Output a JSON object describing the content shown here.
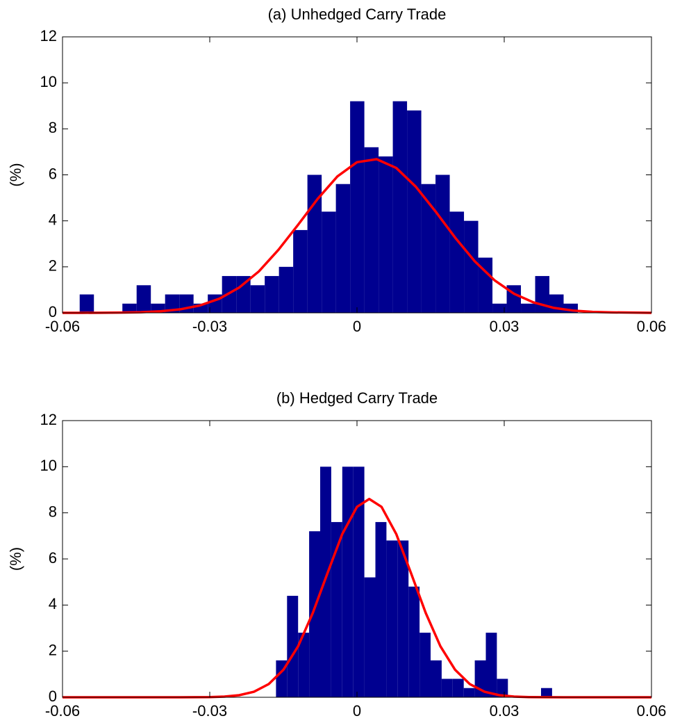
{
  "chart_data": [
    {
      "type": "histogram",
      "title": "(a) Unhedged Carry Trade",
      "ylabel": "(%)",
      "bins": [
        -0.0565,
        -0.0536,
        -0.0507,
        -0.0478,
        -0.0449,
        -0.042,
        -0.0391,
        -0.0362,
        -0.0333,
        -0.0304,
        -0.0275,
        -0.0246,
        -0.0217,
        -0.0188,
        -0.0159,
        -0.013,
        -0.0101,
        -0.0072,
        -0.0043,
        -0.0014,
        0.0015,
        0.0044,
        0.0073,
        0.0102,
        0.0131,
        0.016,
        0.0189,
        0.0218,
        0.0247,
        0.0276,
        0.0305,
        0.0334,
        0.0363,
        0.0392,
        0.0421,
        0.045
      ],
      "values": [
        0.8,
        0,
        0,
        0.4,
        1.2,
        0.4,
        0.8,
        0.8,
        0.4,
        0.8,
        1.6,
        1.6,
        1.2,
        1.6,
        2.0,
        3.6,
        6.0,
        4.4,
        5.6,
        9.2,
        7.2,
        6.8,
        9.2,
        8.8,
        5.6,
        6.0,
        4.4,
        4.0,
        2.4,
        0.4,
        1.2,
        0.4,
        1.6,
        0.8,
        0.4
      ],
      "color": "#000090",
      "curve": {
        "x": [
          -0.06,
          -0.056,
          -0.052,
          -0.048,
          -0.044,
          -0.04,
          -0.036,
          -0.032,
          -0.028,
          -0.024,
          -0.02,
          -0.016,
          -0.012,
          -0.008,
          -0.004,
          0,
          0.004,
          0.008,
          0.012,
          0.016,
          0.02,
          0.024,
          0.028,
          0.032,
          0.036,
          0.04,
          0.044,
          0.048,
          0.052,
          0.056,
          0.06
        ],
        "values": [
          0,
          0.001,
          0.004,
          0.011,
          0.028,
          0.068,
          0.154,
          0.321,
          0.618,
          1.1,
          1.8,
          2.74,
          3.83,
          4.96,
          5.93,
          6.55,
          6.68,
          6.3,
          5.48,
          4.41,
          3.27,
          2.24,
          1.42,
          0.83,
          0.45,
          0.22,
          0.1,
          0.04,
          0.02,
          0.01,
          0
        ],
        "color": "#ff0000"
      },
      "xlim": [
        -0.06,
        0.06
      ],
      "xticks": [
        -0.06,
        -0.03,
        0,
        0.03,
        0.06
      ],
      "ylim": [
        0,
        12
      ],
      "yticks": [
        0,
        2,
        4,
        6,
        8,
        10,
        12
      ]
    },
    {
      "type": "histogram",
      "title": "(b) Hedged Carry Trade",
      "ylabel": "(%)",
      "bins": [
        -0.0165,
        -0.01425,
        -0.012,
        -0.00975,
        -0.0075,
        -0.00525,
        -0.003,
        -0.00075,
        0.0015,
        0.00375,
        0.006,
        0.00825,
        0.0105,
        0.01275,
        0.015,
        0.01725,
        0.0195,
        0.02175,
        0.024,
        0.02625,
        0.0285,
        0.03075,
        0.033,
        0.03525,
        0.0375,
        0.03975
      ],
      "values": [
        1.6,
        4.4,
        2.8,
        7.2,
        10,
        7.6,
        10,
        10,
        5.2,
        7.6,
        6.8,
        6.8,
        4.8,
        2.8,
        1.6,
        0.8,
        0.8,
        0.4,
        1.6,
        2.8,
        0.8,
        0,
        0,
        0,
        0.4
      ],
      "color": "#000090",
      "curve": {
        "x": [
          -0.06,
          -0.054,
          -0.048,
          -0.042,
          -0.036,
          -0.03,
          -0.027,
          -0.024,
          -0.021,
          -0.018,
          -0.015,
          -0.012,
          -0.009,
          -0.006,
          -0.003,
          0,
          0.0025,
          0.005,
          0.008,
          0.011,
          0.014,
          0.017,
          0.02,
          0.023,
          0.026,
          0.029,
          0.032,
          0.035,
          0.038,
          0.042,
          0.048,
          0.054,
          0.06
        ],
        "values": [
          0,
          0,
          0,
          0,
          0,
          0.009,
          0.03,
          0.09,
          0.24,
          0.57,
          1.19,
          2.21,
          3.66,
          5.39,
          7.08,
          8.26,
          8.6,
          8.26,
          7.08,
          5.39,
          3.66,
          2.21,
          1.19,
          0.57,
          0.24,
          0.09,
          0.03,
          0.009,
          0.002,
          0,
          0,
          0,
          0
        ],
        "color": "#ff0000"
      },
      "xlim": [
        -0.06,
        0.06
      ],
      "xticks": [
        -0.06,
        -0.03,
        0,
        0.03,
        0.06
      ],
      "ylim": [
        0,
        12
      ],
      "yticks": [
        0,
        2,
        4,
        6,
        8,
        10,
        12
      ]
    }
  ]
}
